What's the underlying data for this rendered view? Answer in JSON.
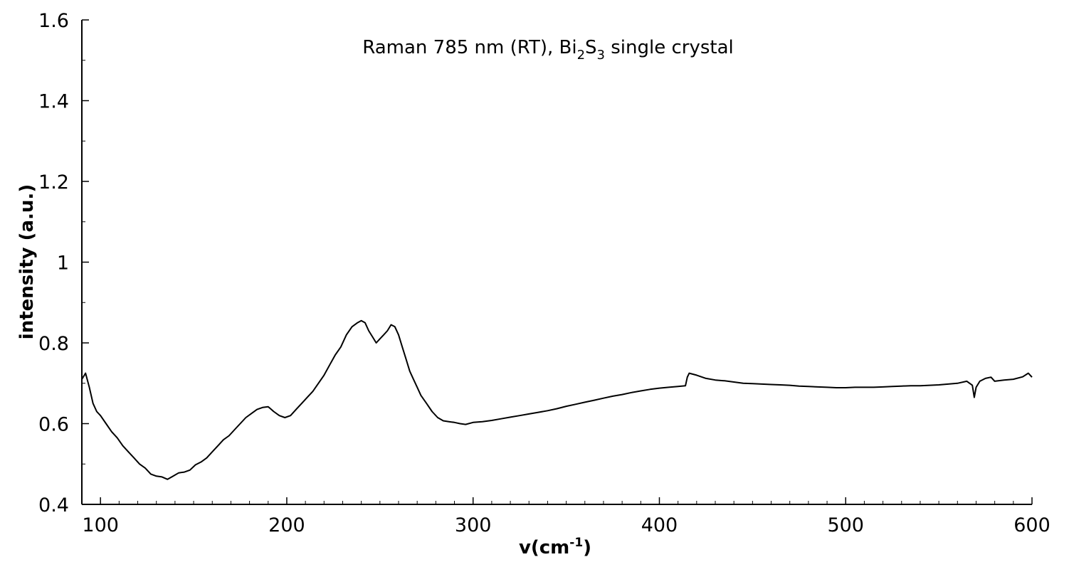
{
  "chart_data": {
    "type": "line",
    "title": {
      "prefix": "Raman 785 nm (RT), Bi",
      "sub1": "2",
      "mid": "S",
      "sub2": "3",
      "suffix": " single crystal"
    },
    "xlabel": {
      "main": "v(cm",
      "sup": "-1",
      "close": ")"
    },
    "ylabel": "intensity (a.u.)",
    "xlim": [
      90,
      600
    ],
    "ylim": [
      0.4,
      1.6
    ],
    "x_ticks": [
      100,
      200,
      300,
      400,
      500,
      600
    ],
    "x_tick_labels": [
      "100",
      "200",
      "300",
      "400",
      "500",
      "600"
    ],
    "x_minor_step": 10,
    "y_ticks": [
      0.4,
      0.6,
      0.8,
      1.0,
      1.2,
      1.4,
      1.6
    ],
    "y_tick_labels": [
      "0.4",
      "0.6",
      "0.8",
      "1",
      "1.2",
      "1.4",
      "1.6"
    ],
    "grid": false,
    "legend": "none",
    "line_color": "#000000",
    "series": [
      {
        "x": [
          90,
          92,
          94,
          96,
          98,
          100,
          103,
          106,
          109,
          112,
          115,
          118,
          121,
          124,
          127,
          130,
          133,
          136,
          139,
          142,
          145,
          148,
          151,
          154,
          157,
          160,
          163,
          166,
          169,
          172,
          175,
          178,
          181,
          184,
          187,
          190,
          193,
          196,
          199,
          202,
          205,
          208,
          211,
          214,
          217,
          220,
          223,
          226,
          229,
          232,
          235,
          238,
          240,
          242,
          244,
          246,
          248,
          250,
          252,
          254,
          256,
          258,
          260,
          262,
          264,
          266,
          268,
          270,
          272,
          275,
          278,
          281,
          284,
          287,
          290,
          293,
          296,
          300,
          305,
          310,
          315,
          320,
          325,
          330,
          335,
          340,
          345,
          350,
          355,
          360,
          365,
          370,
          375,
          380,
          385,
          390,
          395,
          400,
          405,
          410,
          414,
          415,
          416,
          420,
          425,
          430,
          435,
          440,
          445,
          450,
          455,
          460,
          465,
          470,
          475,
          480,
          485,
          490,
          495,
          500,
          505,
          510,
          515,
          520,
          525,
          530,
          535,
          540,
          545,
          550,
          555,
          560,
          565,
          568,
          569,
          570,
          572,
          575,
          578,
          580,
          585,
          590,
          595,
          598,
          600
        ],
        "y": [
          0.71,
          0.725,
          0.69,
          0.65,
          0.63,
          0.62,
          0.6,
          0.58,
          0.565,
          0.545,
          0.53,
          0.515,
          0.5,
          0.49,
          0.475,
          0.47,
          0.468,
          0.462,
          0.47,
          0.478,
          0.48,
          0.485,
          0.498,
          0.505,
          0.515,
          0.53,
          0.545,
          0.56,
          0.57,
          0.585,
          0.6,
          0.615,
          0.625,
          0.635,
          0.64,
          0.642,
          0.63,
          0.62,
          0.615,
          0.62,
          0.635,
          0.65,
          0.665,
          0.68,
          0.7,
          0.72,
          0.745,
          0.77,
          0.79,
          0.82,
          0.84,
          0.85,
          0.855,
          0.85,
          0.83,
          0.815,
          0.8,
          0.81,
          0.82,
          0.83,
          0.845,
          0.84,
          0.82,
          0.79,
          0.76,
          0.73,
          0.71,
          0.69,
          0.67,
          0.65,
          0.63,
          0.615,
          0.607,
          0.605,
          0.603,
          0.6,
          0.598,
          0.603,
          0.605,
          0.608,
          0.612,
          0.616,
          0.62,
          0.624,
          0.628,
          0.632,
          0.637,
          0.643,
          0.648,
          0.653,
          0.658,
          0.663,
          0.668,
          0.672,
          0.677,
          0.681,
          0.685,
          0.688,
          0.69,
          0.692,
          0.694,
          0.715,
          0.725,
          0.72,
          0.712,
          0.708,
          0.706,
          0.703,
          0.7,
          0.699,
          0.698,
          0.697,
          0.696,
          0.695,
          0.693,
          0.692,
          0.691,
          0.69,
          0.689,
          0.689,
          0.69,
          0.69,
          0.69,
          0.691,
          0.692,
          0.693,
          0.694,
          0.694,
          0.695,
          0.696,
          0.698,
          0.7,
          0.705,
          0.695,
          0.665,
          0.69,
          0.705,
          0.712,
          0.715,
          0.705,
          0.708,
          0.71,
          0.716,
          0.725,
          0.715
        ]
      }
    ]
  }
}
